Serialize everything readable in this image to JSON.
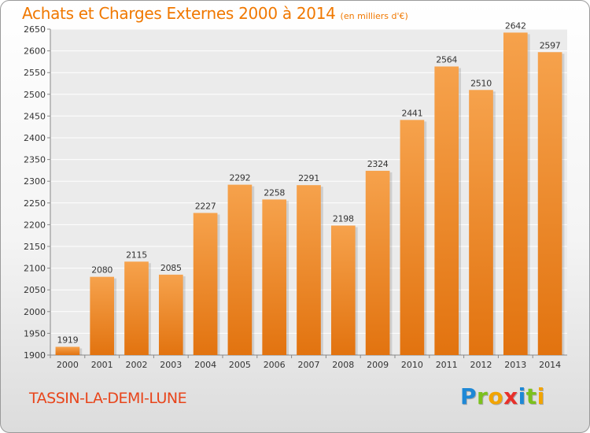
{
  "chart_data": {
    "type": "bar",
    "title": "Achats et Charges Externes 2000 à 2014",
    "subtitle": "(en milliers d'€)",
    "categories": [
      "2000",
      "2001",
      "2002",
      "2003",
      "2004",
      "2005",
      "2006",
      "2007",
      "2008",
      "2009",
      "2010",
      "2011",
      "2012",
      "2013",
      "2014"
    ],
    "values": [
      1919,
      2080,
      2115,
      2085,
      2227,
      2292,
      2258,
      2291,
      2198,
      2324,
      2441,
      2564,
      2510,
      2642,
      2597
    ],
    "ylim": [
      1900,
      2650
    ],
    "yticks": [
      1900,
      1950,
      2000,
      2050,
      2100,
      2150,
      2200,
      2250,
      2300,
      2350,
      2400,
      2450,
      2500,
      2550,
      2600,
      2650
    ],
    "grid": true,
    "bar_color": "#f0831f",
    "xlabel": "",
    "ylabel": ""
  },
  "footer": {
    "city": "TASSIN-LA-DEMI-LUNE",
    "brand_letters": [
      {
        "ch": "P",
        "color": "#1e88d6"
      },
      {
        "ch": "r",
        "color": "#7cc11d"
      },
      {
        "ch": "o",
        "color": "#f2a400"
      },
      {
        "ch": "x",
        "color": "#e8302a"
      },
      {
        "ch": "i",
        "color": "#1e88d6"
      },
      {
        "ch": "t",
        "color": "#7cc11d"
      },
      {
        "ch": "i",
        "color": "#f2a400"
      }
    ]
  }
}
